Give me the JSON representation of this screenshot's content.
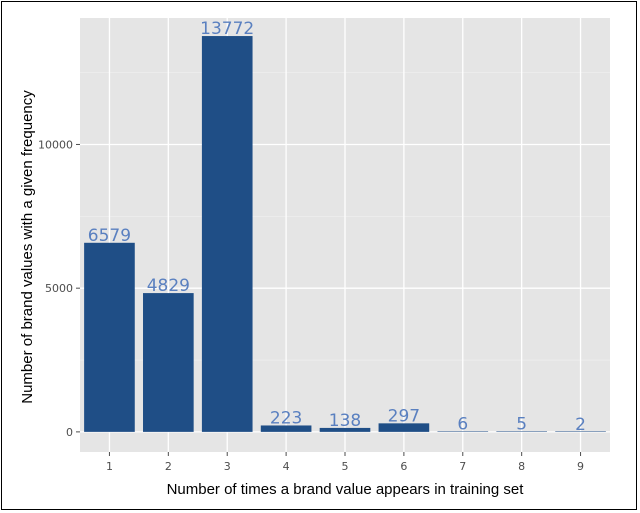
{
  "chart_data": {
    "type": "bar",
    "categories": [
      "1",
      "2",
      "3",
      "4",
      "5",
      "6",
      "7",
      "8",
      "9"
    ],
    "values": [
      6579,
      4829,
      13772,
      223,
      138,
      297,
      6,
      5,
      2
    ],
    "data_labels": [
      "6579",
      "4829",
      "13772",
      "223",
      "138",
      "297",
      "6",
      "5",
      "2"
    ],
    "xlabel": "Number of times a brand value appears in training set",
    "ylabel": "Number of brand values with a given frequency",
    "yticks": [
      0,
      5000,
      10000
    ],
    "ytick_labels": [
      "0",
      "5000",
      "10000"
    ],
    "ylim": [
      -700,
      14400
    ],
    "grid": true,
    "colors": {
      "bar": "#1f4e86",
      "panel_background": "#e5e5e5",
      "grid_major": "#ffffff",
      "grid_minor": "#f0f0f0",
      "data_label": "#5a80c0"
    }
  }
}
